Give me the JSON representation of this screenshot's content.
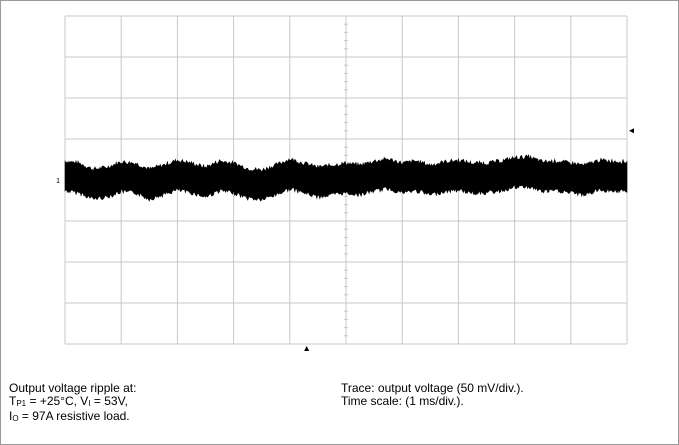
{
  "chart_data": {
    "type": "line",
    "title": "",
    "xlabel": "",
    "ylabel": "",
    "grid": true,
    "x_divisions": 10,
    "y_divisions": 8,
    "x_unit_per_div": "1 ms",
    "y_unit_per_div": "50 mV",
    "xlim": [
      0,
      10
    ],
    "ylim": [
      -4,
      4
    ],
    "series": [
      {
        "center": [
          [
            0.0,
            0.1
          ],
          [
            0.25,
            0.05
          ],
          [
            0.5,
            -0.1
          ],
          [
            0.75,
            -0.05
          ],
          [
            1.0,
            0.08
          ],
          [
            1.25,
            0.05
          ],
          [
            1.5,
            -0.1
          ],
          [
            1.75,
            0.0
          ],
          [
            2.0,
            0.12
          ],
          [
            2.25,
            0.05
          ],
          [
            2.5,
            -0.05
          ],
          [
            2.75,
            0.1
          ],
          [
            3.0,
            0.05
          ],
          [
            3.25,
            -0.08
          ],
          [
            3.5,
            -0.12
          ],
          [
            3.75,
            0.0
          ],
          [
            4.0,
            0.15
          ],
          [
            4.25,
            0.05
          ],
          [
            4.5,
            -0.05
          ],
          [
            4.75,
            0.0
          ],
          [
            5.0,
            0.05
          ],
          [
            5.25,
            0.0
          ],
          [
            5.5,
            0.1
          ],
          [
            5.75,
            0.15
          ],
          [
            6.0,
            0.05
          ],
          [
            6.25,
            0.1
          ],
          [
            6.5,
            0.0
          ],
          [
            6.75,
            0.08
          ],
          [
            7.0,
            0.12
          ],
          [
            7.25,
            0.05
          ],
          [
            7.5,
            0.05
          ],
          [
            7.75,
            0.1
          ],
          [
            8.0,
            0.18
          ],
          [
            8.25,
            0.2
          ],
          [
            8.5,
            0.08
          ],
          [
            8.75,
            0.1
          ],
          [
            9.0,
            0.05
          ],
          [
            9.25,
            0.0
          ],
          [
            9.5,
            0.12
          ],
          [
            9.75,
            0.1
          ],
          [
            10.0,
            0.08
          ]
        ],
        "peak_to_peak_div": 0.72
      }
    ],
    "markers": {
      "channel_ground_label": "1",
      "trigger_arrow_right": true,
      "trigger_arrow_bottom": true
    }
  },
  "caption_left": {
    "line1": "Output voltage ripple  at:",
    "line2_a": "T",
    "line2_sub": "P1",
    "line2_b": " = +25°C, V",
    "line2_sub2": "I",
    "line2_c": " = 53V,",
    "line3_a": "I",
    "line3_sub": "O",
    "line3_b": " = 97A resistive load."
  },
  "caption_right": {
    "line1": "Trace: output voltage (50 mV/div.).",
    "line2": "Time scale: (1 ms/div.)."
  },
  "colors": {
    "grid": "#c8c8c8",
    "trace": "#000000",
    "frame": "#9a9a9a"
  }
}
